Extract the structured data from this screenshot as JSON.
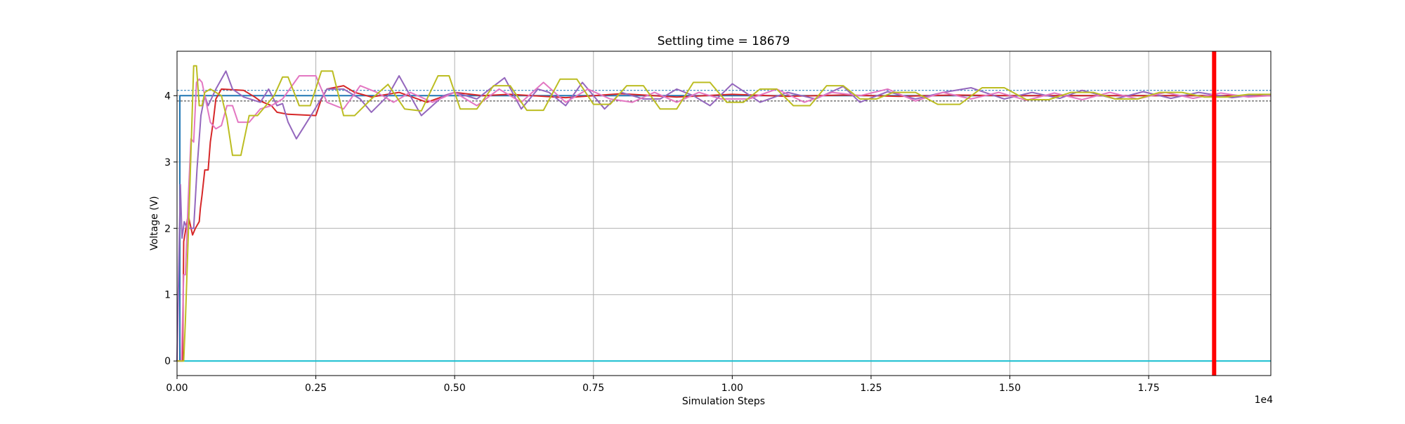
{
  "chart_data": {
    "type": "line",
    "title": "Settling time = 18679",
    "xlabel": "Simulation Steps",
    "ylabel": "Voltage (V)",
    "x_offset_text": "1e4",
    "xlim": [
      0,
      19700
    ],
    "ylim": [
      -0.22,
      4.67
    ],
    "grid": true,
    "x_ticks": [
      0,
      2500,
      5000,
      7500,
      10000,
      12500,
      15000,
      17500
    ],
    "x_tick_labels": [
      "0.00",
      "0.25",
      "0.50",
      "0.75",
      "1.00",
      "1.25",
      "1.50",
      "1.75"
    ],
    "y_ticks": [
      0,
      1,
      2,
      3,
      4
    ],
    "y_tick_labels": [
      "0",
      "1",
      "2",
      "3",
      "4"
    ],
    "reference_lines": [
      {
        "kind": "tolerance-upper",
        "y": 4.08,
        "color": "#1f77b4",
        "style": "dashed"
      },
      {
        "kind": "tolerance-lower",
        "y": 3.92,
        "color": "#333333",
        "style": "dashed"
      },
      {
        "kind": "settling-marker",
        "x": 18679,
        "color": "#ff0000"
      }
    ],
    "series": [
      {
        "color": "#1f77b4",
        "x": [
          0,
          50,
          50,
          19700
        ],
        "values": [
          0,
          0,
          4,
          4
        ]
      },
      {
        "color": "#17becf",
        "x": [
          0,
          19700
        ],
        "values": [
          0,
          0
        ]
      },
      {
        "color": "#d62728",
        "x": [
          0,
          100,
          120,
          200,
          280,
          330,
          400,
          420,
          450,
          500,
          500,
          560,
          600,
          650,
          700,
          800,
          1200,
          1400,
          1500,
          1700,
          1800,
          2000,
          2500,
          2600,
          2700,
          3000,
          3200,
          3500,
          4000,
          4500,
          5000,
          5500,
          6000,
          7000,
          8000,
          9000,
          10000,
          11000,
          12000,
          13000,
          14000,
          15000,
          16000,
          17000,
          18000,
          19000,
          19700
        ],
        "values": [
          0,
          0,
          1.8,
          2.2,
          1.9,
          2.0,
          2.1,
          2.3,
          2.5,
          2.88,
          2.88,
          2.88,
          3.3,
          3.6,
          3.95,
          4.1,
          4.08,
          3.98,
          3.92,
          3.85,
          3.75,
          3.72,
          3.7,
          3.95,
          4.1,
          4.15,
          4.05,
          3.98,
          4.05,
          3.9,
          4.05,
          4.0,
          4.02,
          3.97,
          4.03,
          3.98,
          4.02,
          3.99,
          4.01,
          3.99,
          4.01,
          4.0,
          4.0,
          4.0,
          4.0,
          4.0,
          4.0
        ]
      },
      {
        "color": "#9467bd",
        "x": [
          0,
          60,
          90,
          130,
          180,
          240,
          300,
          360,
          430,
          500,
          560,
          700,
          880,
          1000,
          1200,
          1500,
          1650,
          1800,
          1900,
          2000,
          2150,
          2300,
          2450,
          2700,
          3000,
          3300,
          3500,
          3800,
          4000,
          4200,
          4400,
          4800,
          5000,
          5400,
          5900,
          6200,
          6500,
          6700,
          7000,
          7300,
          7700,
          8000,
          8400,
          8700,
          9000,
          9300,
          9600,
          10000,
          10500,
          11000,
          11500,
          12000,
          12300,
          12800,
          13300,
          13800,
          14300,
          14900,
          15400,
          15900,
          16300,
          16900,
          17400,
          17900,
          18400,
          19000,
          19500,
          19700
        ],
        "values": [
          0,
          2.66,
          1.85,
          2.1,
          2.0,
          2.0,
          2.0,
          2.9,
          3.7,
          4.0,
          3.85,
          4.1,
          4.37,
          4.1,
          3.98,
          3.9,
          4.1,
          3.85,
          3.88,
          3.6,
          3.35,
          3.55,
          3.75,
          4.1,
          4.1,
          3.95,
          3.75,
          4.0,
          4.3,
          4.0,
          3.7,
          4.0,
          4.05,
          3.95,
          4.27,
          3.8,
          4.1,
          4.05,
          3.85,
          4.2,
          3.8,
          4.05,
          3.95,
          3.95,
          4.1,
          4.0,
          3.85,
          4.18,
          3.9,
          4.05,
          3.95,
          4.14,
          3.9,
          4.06,
          3.95,
          4.05,
          4.12,
          3.95,
          4.05,
          3.96,
          4.08,
          3.95,
          4.06,
          3.96,
          4.05,
          3.97,
          4.02,
          4.0
        ]
      },
      {
        "color": "#e377c2",
        "x": [
          0,
          80,
          120,
          150,
          200,
          250,
          300,
          350,
          400,
          450,
          500,
          600,
          700,
          800,
          900,
          1000,
          1100,
          1300,
          1500,
          1700,
          1900,
          2200,
          2500,
          2700,
          3000,
          3300,
          3600,
          3900,
          4200,
          4600,
          5000,
          5400,
          5800,
          6200,
          6600,
          7000,
          7400,
          7800,
          8200,
          8600,
          9000,
          9400,
          9800,
          10300,
          10800,
          11300,
          11800,
          12300,
          12800,
          13300,
          13800,
          14300,
          14800,
          15300,
          15800,
          16300,
          16800,
          17300,
          17800,
          18300,
          18800,
          19300,
          19700
        ],
        "values": [
          0,
          0,
          1.3,
          1.3,
          2.4,
          3.35,
          3.3,
          4.2,
          4.25,
          4.2,
          4.0,
          3.6,
          3.5,
          3.55,
          3.85,
          3.85,
          3.6,
          3.6,
          3.8,
          3.85,
          3.95,
          4.3,
          4.3,
          3.9,
          3.8,
          4.15,
          4.05,
          3.9,
          4.05,
          3.9,
          4.05,
          3.85,
          4.1,
          3.9,
          4.2,
          3.9,
          4.1,
          3.95,
          3.9,
          4.05,
          3.9,
          4.05,
          3.95,
          3.95,
          4.1,
          3.9,
          4.05,
          4.0,
          4.1,
          3.92,
          4.05,
          3.95,
          4.05,
          3.93,
          4.04,
          3.94,
          4.05,
          3.95,
          4.05,
          3.96,
          4.04,
          3.98,
          4.0
        ]
      },
      {
        "color": "#bcbd22",
        "x": [
          0,
          120,
          150,
          230,
          300,
          350,
          400,
          450,
          500,
          600,
          700,
          800,
          900,
          1000,
          1050,
          1150,
          1300,
          1450,
          1600,
          1750,
          1900,
          2000,
          2200,
          2400,
          2600,
          2800,
          3000,
          3200,
          3500,
          3800,
          4100,
          4400,
          4700,
          4900,
          5100,
          5400,
          5700,
          6000,
          6300,
          6600,
          6900,
          7200,
          7500,
          7800,
          8100,
          8400,
          8700,
          9000,
          9300,
          9600,
          9900,
          10200,
          10500,
          10800,
          11100,
          11400,
          11700,
          12000,
          12300,
          12600,
          12900,
          13300,
          13700,
          14100,
          14500,
          14900,
          15300,
          15700,
          16100,
          16500,
          16900,
          17300,
          17700,
          18100,
          18500,
          18900,
          19300,
          19700
        ],
        "values": [
          0,
          0,
          0.6,
          2.6,
          4.45,
          4.45,
          3.85,
          3.85,
          4.05,
          4.1,
          4.05,
          4.0,
          3.65,
          3.1,
          3.1,
          3.1,
          3.7,
          3.7,
          3.85,
          4.0,
          4.28,
          4.28,
          3.85,
          3.85,
          4.37,
          4.37,
          3.7,
          3.7,
          3.95,
          4.17,
          3.8,
          3.77,
          4.3,
          4.3,
          3.8,
          3.8,
          4.15,
          4.15,
          3.78,
          3.78,
          4.25,
          4.25,
          3.87,
          3.87,
          4.15,
          4.15,
          3.8,
          3.8,
          4.2,
          4.2,
          3.9,
          3.9,
          4.1,
          4.1,
          3.85,
          3.85,
          4.15,
          4.15,
          3.95,
          3.95,
          4.05,
          4.05,
          3.87,
          3.87,
          4.12,
          4.12,
          3.94,
          3.94,
          4.05,
          4.05,
          3.95,
          3.95,
          4.05,
          4.05,
          3.98,
          3.98,
          4.02,
          4.02
        ]
      }
    ]
  }
}
